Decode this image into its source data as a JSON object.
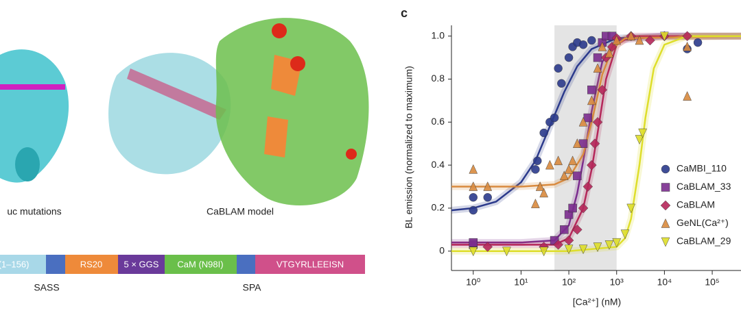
{
  "figure": {
    "structure_labels": [
      "uc mutations",
      "CaBLAM model"
    ],
    "domain_bar": {
      "segments": [
        "(1–156)",
        "RS20",
        "5 × GGS",
        "CaM (N98I)",
        "VTGYRLLEEISN"
      ],
      "regions": [
        "SASS",
        "SPA"
      ]
    }
  },
  "chart_data": {
    "type": "scatter",
    "panel": "c",
    "x_label": "[Ca²⁺] (nM)",
    "y_label": "BL emission (normalized to maximum)",
    "x_log": true,
    "xlim": [
      0.35,
      400000
    ],
    "ylim": [
      -0.09,
      1.05
    ],
    "xticks": [
      {
        "value": 1,
        "label": "10⁰"
      },
      {
        "value": 10,
        "label": "10¹"
      },
      {
        "value": 100,
        "label": "10²"
      },
      {
        "value": 1000,
        "label": "10³"
      },
      {
        "value": 10000,
        "label": "10⁴"
      },
      {
        "value": 100000,
        "label": "10⁵"
      }
    ],
    "yticks": [
      0,
      0.2,
      0.4,
      0.6,
      0.8,
      {
        "value": 1,
        "label": "1.0"
      }
    ],
    "shaded_range": [
      50,
      1000
    ],
    "legend": "center right",
    "series": [
      {
        "name": "CaMBI_110",
        "color": "#2b3a8c",
        "marker": "circle",
        "x": [
          1,
          2,
          1,
          22,
          20,
          30,
          40,
          50,
          70,
          60,
          100,
          120,
          150,
          200,
          300,
          30000,
          50000
        ],
        "values": [
          0.25,
          0.25,
          0.19,
          0.42,
          0.38,
          0.55,
          0.6,
          0.62,
          0.78,
          0.85,
          0.9,
          0.95,
          0.97,
          0.96,
          0.98,
          0.94,
          0.97
        ],
        "fit_x": [
          0.35,
          1,
          3,
          10,
          20,
          40,
          80,
          150,
          300,
          1000,
          10000,
          400000
        ],
        "fit_y": [
          0.19,
          0.2,
          0.23,
          0.32,
          0.42,
          0.58,
          0.74,
          0.86,
          0.94,
          0.99,
          1,
          1
        ]
      },
      {
        "name": "CaBLAM_33",
        "color": "#7b2d8e",
        "marker": "square",
        "x": [
          1,
          1,
          50,
          80,
          100,
          120,
          150,
          200,
          250,
          300,
          400,
          500,
          600,
          800
        ],
        "values": [
          0.03,
          0.04,
          0.05,
          0.1,
          0.17,
          0.2,
          0.35,
          0.5,
          0.62,
          0.75,
          0.9,
          0.97,
          1,
          1
        ],
        "fit_x": [
          0.35,
          10,
          50,
          100,
          150,
          200,
          300,
          500,
          1000,
          10000,
          400000
        ],
        "fit_y": [
          0.04,
          0.04,
          0.05,
          0.12,
          0.27,
          0.42,
          0.65,
          0.88,
          0.98,
          1,
          1
        ]
      },
      {
        "name": "CaBLAM",
        "color": "#b5275a",
        "marker": "diamond",
        "x": [
          2,
          30,
          60,
          100,
          150,
          200,
          250,
          300,
          350,
          400,
          500,
          600,
          800,
          1000,
          2000,
          5000,
          10000,
          30000
        ],
        "values": [
          0.02,
          0.02,
          0.03,
          0.05,
          0.1,
          0.2,
          0.3,
          0.4,
          0.5,
          0.6,
          0.75,
          0.9,
          0.95,
          0.99,
          1,
          0.98,
          1,
          1
        ],
        "fit_x": [
          0.35,
          50,
          100,
          200,
          300,
          400,
          600,
          1000,
          2000,
          400000
        ],
        "fit_y": [
          0.03,
          0.03,
          0.06,
          0.2,
          0.38,
          0.55,
          0.8,
          0.96,
          1,
          1
        ]
      },
      {
        "name": "GeNL(Ca²⁺)",
        "color": "#d98a3e",
        "marker": "triangle",
        "x": [
          1,
          1,
          2,
          20,
          25,
          30,
          40,
          60,
          80,
          100,
          120,
          150,
          200,
          300,
          400,
          500,
          700,
          1000,
          2000,
          3000,
          30000,
          30000
        ],
        "values": [
          0.38,
          0.3,
          0.3,
          0.22,
          0.3,
          0.27,
          0.4,
          0.42,
          0.35,
          0.38,
          0.42,
          0.5,
          0.6,
          0.7,
          0.85,
          0.95,
          0.92,
          0.98,
          1,
          0.98,
          0.72,
          0.95
        ],
        "fit_x": [
          0.35,
          10,
          50,
          100,
          200,
          300,
          500,
          800,
          1500,
          400000
        ],
        "fit_y": [
          0.3,
          0.3,
          0.31,
          0.34,
          0.45,
          0.6,
          0.82,
          0.94,
          0.99,
          1
        ]
      },
      {
        "name": "CaBLAM_29",
        "color": "#dede2a",
        "marker": "triangle-down",
        "x": [
          1,
          5,
          30,
          100,
          200,
          400,
          700,
          1000,
          1500,
          2000,
          3000,
          3500,
          10000
        ],
        "values": [
          0,
          0,
          0,
          0.01,
          0.01,
          0.02,
          0.03,
          0.04,
          0.08,
          0.2,
          0.52,
          0.55,
          1
        ],
        "fit_x": [
          0.35,
          100,
          1000,
          1500,
          2000,
          3000,
          4000,
          6000,
          10000,
          30000,
          400000
        ],
        "fit_y": [
          0,
          0,
          0.02,
          0.06,
          0.15,
          0.4,
          0.62,
          0.85,
          0.96,
          1,
          1
        ]
      }
    ]
  }
}
